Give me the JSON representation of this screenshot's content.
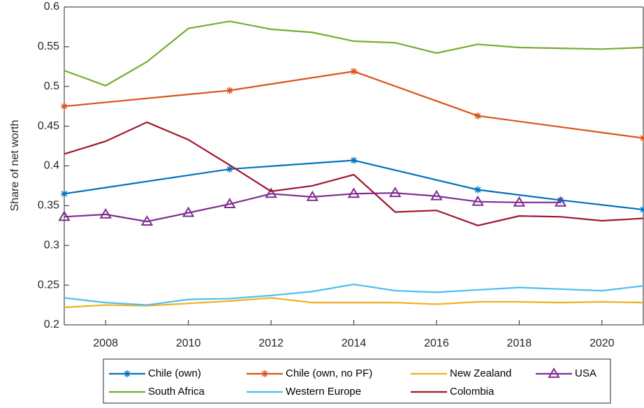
{
  "chart_data": {
    "type": "line",
    "ylabel": "Share of net worth",
    "xlim": [
      2007,
      2021
    ],
    "xticks": [
      2008,
      2010,
      2012,
      2014,
      2016,
      2018,
      2020
    ],
    "ylim": [
      0.2,
      0.6
    ],
    "yticks": [
      0.2,
      0.25,
      0.3,
      0.35,
      0.4,
      0.45,
      0.5,
      0.55,
      0.6
    ],
    "grid": false,
    "series": [
      {
        "name": "Chile (own)",
        "color": "#0072BD",
        "marker": "star",
        "x": [
          2007,
          2011,
          2014,
          2017,
          2019,
          2021
        ],
        "values": [
          0.365,
          0.396,
          0.407,
          0.37,
          0.357,
          0.345
        ]
      },
      {
        "name": "Chile (own, no PF)",
        "color": "#D95319",
        "marker": "star",
        "x": [
          2007,
          2011,
          2014,
          2017,
          2021
        ],
        "values": [
          0.475,
          0.495,
          0.519,
          0.463,
          0.435
        ]
      },
      {
        "name": "New Zealand",
        "color": "#EDB120",
        "marker": "none",
        "x": [
          2007,
          2008,
          2009,
          2010,
          2011,
          2012,
          2013,
          2014,
          2015,
          2016,
          2017,
          2018,
          2019,
          2020,
          2021
        ],
        "values": [
          0.222,
          0.225,
          0.224,
          0.227,
          0.23,
          0.234,
          0.228,
          0.228,
          0.228,
          0.226,
          0.229,
          0.229,
          0.228,
          0.229,
          0.228
        ]
      },
      {
        "name": "USA",
        "color": "#7E2F8E",
        "marker": "triangle",
        "x": [
          2007,
          2008,
          2009,
          2010,
          2011,
          2012,
          2013,
          2014,
          2015,
          2016,
          2017,
          2018,
          2019
        ],
        "values": [
          0.336,
          0.339,
          0.33,
          0.341,
          0.352,
          0.365,
          0.361,
          0.365,
          0.366,
          0.362,
          0.355,
          0.354,
          0.354
        ]
      },
      {
        "name": "South Africa",
        "color": "#77AC30",
        "marker": "none",
        "x": [
          2007,
          2008,
          2009,
          2010,
          2011,
          2012,
          2013,
          2014,
          2015,
          2016,
          2017,
          2018,
          2019,
          2020,
          2021
        ],
        "values": [
          0.52,
          0.501,
          0.531,
          0.573,
          0.582,
          0.572,
          0.568,
          0.557,
          0.555,
          0.542,
          0.553,
          0.549,
          0.548,
          0.547,
          0.549
        ]
      },
      {
        "name": "Western Europe",
        "color": "#4DBEEE",
        "marker": "none",
        "x": [
          2007,
          2008,
          2009,
          2010,
          2011,
          2012,
          2013,
          2014,
          2015,
          2016,
          2017,
          2018,
          2019,
          2020,
          2021
        ],
        "values": [
          0.234,
          0.228,
          0.225,
          0.232,
          0.233,
          0.237,
          0.242,
          0.251,
          0.243,
          0.241,
          0.244,
          0.247,
          0.245,
          0.243,
          0.249
        ]
      },
      {
        "name": "Colombia",
        "color": "#A2142F",
        "marker": "none",
        "x": [
          2007,
          2008,
          2009,
          2010,
          2011,
          2012,
          2013,
          2014,
          2015,
          2016,
          2017,
          2018,
          2019,
          2020,
          2021
        ],
        "values": [
          0.415,
          0.431,
          0.455,
          0.433,
          0.401,
          0.368,
          0.375,
          0.389,
          0.342,
          0.344,
          0.325,
          0.337,
          0.336,
          0.331,
          0.334
        ]
      }
    ]
  }
}
